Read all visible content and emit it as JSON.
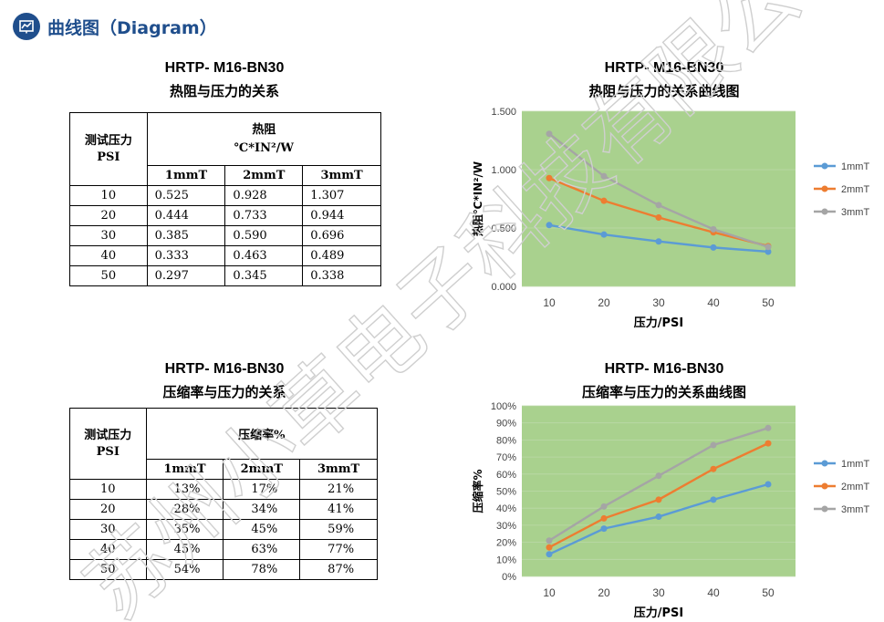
{
  "header": {
    "title": "曲线图（Diagram）",
    "icon": "line-chart-icon"
  },
  "watermark": {
    "text": "苏州小草电子科技有限公司"
  },
  "table1": {
    "title": "HRTP- M16-BN30",
    "subtitle": "热阻与压力的关系",
    "corner": "测试压力\nPSI",
    "group_header": "热阻\n℃*IN²/W",
    "columns": [
      "1mmT",
      "2mmT",
      "3mmT"
    ],
    "rows": [
      [
        "10",
        "0.525",
        "0.928",
        "1.307"
      ],
      [
        "20",
        "0.444",
        "0.733",
        "0.944"
      ],
      [
        "30",
        "0.385",
        "0.590",
        "0.696"
      ],
      [
        "40",
        "0.333",
        "0.463",
        "0.489"
      ],
      [
        "50",
        "0.297",
        "0.345",
        "0.338"
      ]
    ]
  },
  "table2": {
    "title": "HRTP- M16-BN30",
    "subtitle": "压缩率与压力的关系",
    "corner": "测试压力\nPSI",
    "group_header": "压缩率%",
    "columns": [
      "1mmT",
      "2mmT",
      "3mmT"
    ],
    "rows": [
      [
        "10",
        "13%",
        "17%",
        "21%"
      ],
      [
        "20",
        "28%",
        "34%",
        "41%"
      ],
      [
        "30",
        "35%",
        "45%",
        "59%"
      ],
      [
        "40",
        "45%",
        "63%",
        "77%"
      ],
      [
        "50",
        "54%",
        "78%",
        "87%"
      ]
    ]
  },
  "chart_data": [
    {
      "type": "line",
      "title": "HRTP- M16-BN30",
      "subtitle": "热阻与压力的关系曲线图",
      "xlabel": "压力/PSI",
      "ylabel": "热阻℃*IN²/W",
      "x": [
        10,
        20,
        30,
        40,
        50
      ],
      "ylim": [
        0,
        1.5
      ],
      "yticks": [
        "0.000",
        "0.500",
        "1.000",
        "1.500"
      ],
      "ytick_values": [
        0,
        0.5,
        1.0,
        1.5
      ],
      "legend_position": "right",
      "plot_bg": "#a9d18e",
      "series": [
        {
          "name": "1mmT",
          "color": "#5b9bd5",
          "values": [
            0.525,
            0.444,
            0.385,
            0.333,
            0.297
          ]
        },
        {
          "name": "2mmT",
          "color": "#ed7d31",
          "values": [
            0.928,
            0.733,
            0.59,
            0.463,
            0.345
          ]
        },
        {
          "name": "3mmT",
          "color": "#a5a5a5",
          "values": [
            1.307,
            0.944,
            0.696,
            0.489,
            0.338
          ]
        }
      ]
    },
    {
      "type": "line",
      "title": "HRTP- M16-BN30",
      "subtitle": "压缩率与压力的关系曲线图",
      "xlabel": "压力/PSI",
      "ylabel": "压缩率%",
      "x": [
        10,
        20,
        30,
        40,
        50
      ],
      "ylim": [
        0,
        100
      ],
      "yticks": [
        "0%",
        "10%",
        "20%",
        "30%",
        "40%",
        "50%",
        "60%",
        "70%",
        "80%",
        "90%",
        "100%"
      ],
      "ytick_values": [
        0,
        10,
        20,
        30,
        40,
        50,
        60,
        70,
        80,
        90,
        100
      ],
      "legend_position": "right",
      "plot_bg": "#a9d18e",
      "series": [
        {
          "name": "1mmT",
          "color": "#5b9bd5",
          "values": [
            13,
            28,
            35,
            45,
            54
          ]
        },
        {
          "name": "2mmT",
          "color": "#ed7d31",
          "values": [
            17,
            34,
            45,
            63,
            78
          ]
        },
        {
          "name": "3mmT",
          "color": "#a5a5a5",
          "values": [
            21,
            41,
            59,
            77,
            87
          ]
        }
      ]
    }
  ]
}
